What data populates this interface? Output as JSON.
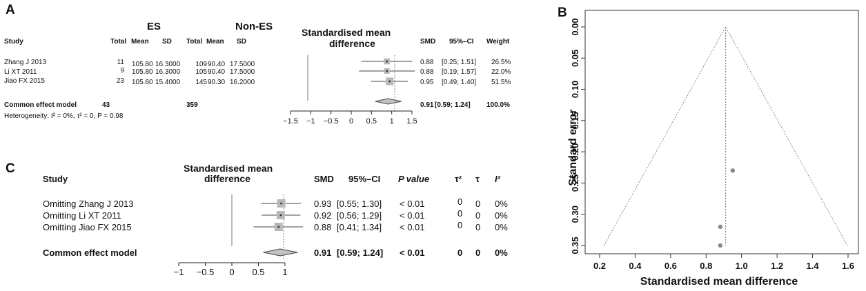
{
  "panels": {
    "A": {
      "letter": "A",
      "group_es": "ES",
      "group_non_es": "Non-ES",
      "headers": {
        "study": "Study",
        "total_es": "Total",
        "mean_es": "Mean",
        "sd_es": "SD",
        "total_non": "Total",
        "mean_non": "Mean",
        "sd_non": "SD",
        "plot_title_1": "Standardised mean",
        "plot_title_2": "difference",
        "smd": "SMD",
        "ci": "95%–CI",
        "weight": "Weight"
      },
      "rows": [
        {
          "study": "Zhang J 2013",
          "total_es": "11",
          "mean_es": "105.80",
          "sd_es": "16.3000",
          "total_non": "109",
          "mean_non": "90.40",
          "sd_non": "17.5000",
          "smd": "0.88",
          "ci": "[0.25; 1.51]",
          "weight": "26.5%"
        },
        {
          "study": "Li XT 2011",
          "total_es": "9",
          "mean_es": "105.80",
          "sd_es": "16.3000",
          "total_non": "105",
          "mean_non": "90.40",
          "sd_non": "17.5000",
          "smd": "0.88",
          "ci": "[0.19; 1.57]",
          "weight": "22.0%"
        },
        {
          "study": "Jiao FX 2015",
          "total_es": "23",
          "mean_es": "105.60",
          "sd_es": "15.4000",
          "total_non": "145",
          "mean_non": "90.30",
          "sd_non": "16.2000",
          "smd": "0.95",
          "ci": "[0.49; 1.40]",
          "weight": "51.5%"
        }
      ],
      "summary": {
        "label": "Common effect model",
        "total_es": "43",
        "total_non": "359",
        "smd": "0.91",
        "ci": "[0.59; 1.24]",
        "weight": "100.0%"
      },
      "heterogeneity": "Heterogeneity: I² = 0%, τ² = 0, P = 0.98"
    },
    "B": {
      "letter": "B"
    },
    "C": {
      "letter": "C",
      "headers": {
        "study": "Study",
        "plot_title_1": "Standardised mean",
        "plot_title_2": "difference",
        "smd": "SMD",
        "ci": "95%–CI",
        "p": "P value",
        "tau2": "τ²",
        "tau": "τ",
        "i2": "I²"
      },
      "rows": [
        {
          "study": "Omitting Zhang J 2013",
          "smd": "0.93",
          "ci": "[0.55; 1.30]",
          "p": "< 0.01",
          "tau2": "0",
          "tau": "0",
          "i2": "0%"
        },
        {
          "study": "Omitting Li XT 2011",
          "smd": "0.92",
          "ci": "[0.56; 1.29]",
          "p": "< 0.01",
          "tau2": "0",
          "tau": "0",
          "i2": "0%"
        },
        {
          "study": "Omitting Jiao FX 2015",
          "smd": "0.88",
          "ci": "[0.41; 1.34]",
          "p": "< 0.01",
          "tau2": "0",
          "tau": "0",
          "i2": "0%"
        }
      ],
      "summary": {
        "label": "Common effect model",
        "smd": "0.91",
        "ci": "[0.59; 1.24]",
        "p": "< 0.01",
        "tau2": "0",
        "tau": "0",
        "i2": "0%"
      }
    }
  },
  "chart_data": [
    {
      "type": "forest",
      "panel": "A",
      "title": "Standardised mean difference",
      "categories": [
        "Zhang J 2013",
        "Li XT 2011",
        "Jiao FX 2015"
      ],
      "values": [
        0.88,
        0.88,
        0.95
      ],
      "ci_lower": [
        0.25,
        0.19,
        0.49
      ],
      "ci_upper": [
        1.51,
        1.57,
        1.4
      ],
      "weights": [
        26.5,
        22.0,
        51.5
      ],
      "pooled": {
        "value": 0.91,
        "ci": [
          0.59,
          1.24
        ]
      },
      "xlim": [
        -1.5,
        1.5
      ],
      "xticks": [
        "−1.5",
        "−1",
        "−0.5",
        "0",
        "0.5",
        "1",
        "1.5"
      ],
      "xtick_values": [
        -1.5,
        -1,
        -0.5,
        0,
        0.5,
        1,
        1.5
      ]
    },
    {
      "type": "scatter",
      "panel": "B",
      "title": "",
      "xlabel": "Standardised mean difference",
      "ylabel": "Standard error",
      "x": [
        0.95,
        0.88,
        0.88
      ],
      "y": [
        0.23,
        0.32,
        0.35
      ],
      "pooled_estimate": 0.91,
      "xlim": [
        0.2,
        1.6
      ],
      "ylim": [
        0.35,
        0.0
      ],
      "y_reversed": true,
      "xticks": [
        "0.2",
        "0.4",
        "0.6",
        "0.8",
        "1.0",
        "1.2",
        "1.4",
        "1.6"
      ],
      "xtick_values": [
        0.2,
        0.4,
        0.6,
        0.8,
        1.0,
        1.2,
        1.4,
        1.6
      ],
      "yticks": [
        "0.00",
        "0.05",
        "0.10",
        "0.15",
        "0.20",
        "0.25",
        "0.30",
        "0.35"
      ],
      "ytick_values": [
        0.0,
        0.05,
        0.1,
        0.15,
        0.2,
        0.25,
        0.3,
        0.35
      ],
      "funnel": "dotted 95% pseudo-confidence limits"
    },
    {
      "type": "forest",
      "panel": "C",
      "title": "Standardised mean difference",
      "categories": [
        "Omitting Zhang J 2013",
        "Omitting Li XT 2011",
        "Omitting Jiao FX 2015"
      ],
      "values": [
        0.93,
        0.92,
        0.88
      ],
      "ci_lower": [
        0.55,
        0.56,
        0.41
      ],
      "ci_upper": [
        1.3,
        1.29,
        1.34
      ],
      "pooled": {
        "value": 0.91,
        "ci": [
          0.59,
          1.24
        ]
      },
      "xlim": [
        -1,
        1
      ],
      "xticks": [
        "−1",
        "−0.5",
        "0",
        "0.5",
        "1"
      ],
      "xtick_values": [
        -1,
        -0.5,
        0,
        0.5,
        1
      ]
    }
  ]
}
